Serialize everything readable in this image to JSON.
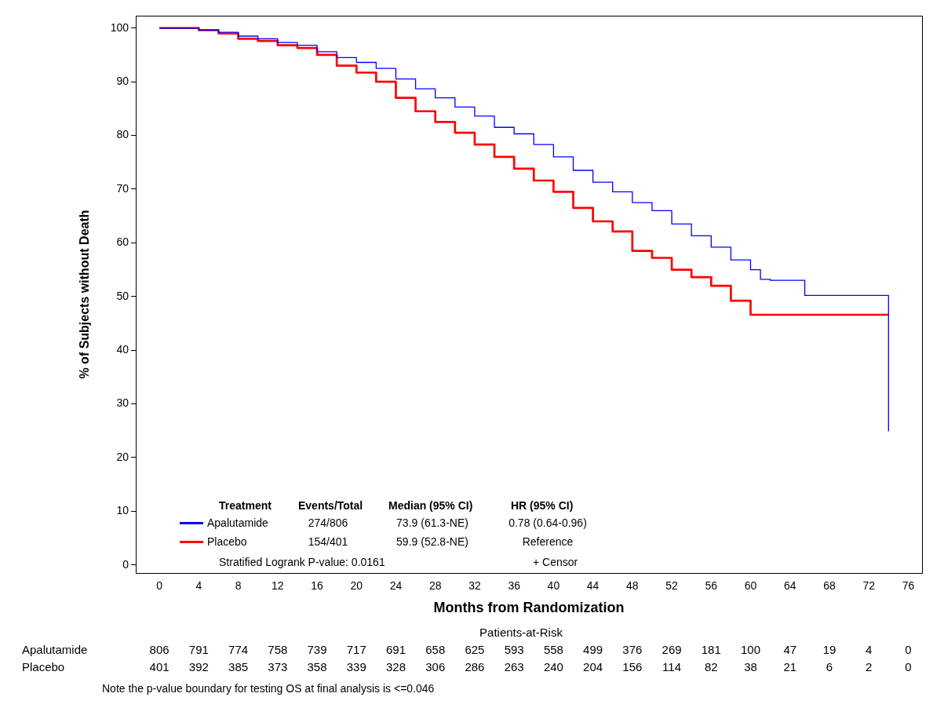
{
  "chart_data": {
    "type": "step",
    "ylabel": "% of Subjects without Death",
    "xlabel": "Months from Randomization",
    "xlim": [
      -2.4,
      77.4
    ],
    "xticks": [
      0,
      4,
      8,
      12,
      16,
      20,
      24,
      28,
      32,
      36,
      40,
      44,
      48,
      52,
      56,
      60,
      64,
      68,
      72,
      76
    ],
    "ylim": [
      -1.5,
      102.3
    ],
    "yticks": [
      0,
      10,
      20,
      30,
      40,
      50,
      60,
      70,
      80,
      90,
      100
    ],
    "grid": false,
    "legend": "bottom left",
    "marker": "none",
    "line_style": "solid",
    "series": [
      {
        "name": "Apalutamide",
        "color": "#0000ff",
        "x": [
          0,
          4,
          6,
          8,
          10,
          12,
          14,
          16,
          18,
          20,
          22,
          24,
          26,
          28,
          30,
          32,
          34,
          36,
          38,
          40,
          42,
          44,
          46,
          48,
          50,
          52,
          54,
          56,
          58,
          60,
          61,
          62,
          65.5,
          66.3,
          74,
          74
        ],
        "values": [
          100,
          100,
          99.6,
          99.2,
          98.5,
          98,
          97.3,
          96.8,
          95.6,
          94.5,
          93.6,
          92.5,
          90.5,
          88.7,
          87,
          85.3,
          83.6,
          81.5,
          80.3,
          78.3,
          76,
          73.5,
          71.3,
          69.5,
          67.5,
          66,
          63.5,
          61.3,
          59.2,
          56.8,
          55,
          53.2,
          53,
          50.2,
          50.2,
          24.9
        ]
      },
      {
        "name": "Placebo",
        "color": "#ff0000",
        "x": [
          0,
          4,
          6,
          8,
          10,
          12,
          14,
          16,
          18,
          20,
          22,
          24,
          26,
          28,
          30,
          32,
          34,
          36,
          38,
          40,
          42,
          44,
          46,
          48,
          50,
          52,
          54,
          56,
          58,
          60,
          61.7,
          74
        ],
        "values": [
          100,
          100,
          99.6,
          99,
          98,
          97.6,
          96.8,
          96.3,
          95,
          93,
          91.7,
          90,
          87,
          84.5,
          82.5,
          80.5,
          78.3,
          76,
          73.8,
          71.6,
          69.5,
          66.5,
          64,
          62.1,
          58.5,
          57.2,
          55,
          53.6,
          52,
          49.2,
          46.6,
          46.6
        ]
      }
    ],
    "annotations": [
      "Treatment",
      "Events/Total",
      "Median (95% CI)",
      "HR (95% CI)",
      "274/806",
      "73.9 (61.3-NE)",
      "0.78 (0.64-0.96)",
      "154/401",
      "59.9 (52.8-NE)",
      "Reference",
      "Stratified Logrank P-value: 0.0161",
      "+  Censor",
      "Patients-at-Risk",
      "Apalutamide",
      "806",
      "791",
      "774",
      "758",
      "739",
      "717",
      "691",
      "658",
      "625",
      "593",
      "558",
      "499",
      "376",
      "269",
      "181",
      "100",
      "47",
      "19",
      "4",
      "0",
      "Placebo",
      "401",
      "392",
      "385",
      "373",
      "358",
      "339",
      "328",
      "306",
      "286",
      "263",
      "240",
      "204",
      "156",
      "114",
      "82",
      "38",
      "21",
      "6",
      "2",
      "0",
      "Note the p-value boundary for testing OS at final analysis is <=0.046"
    ]
  }
}
